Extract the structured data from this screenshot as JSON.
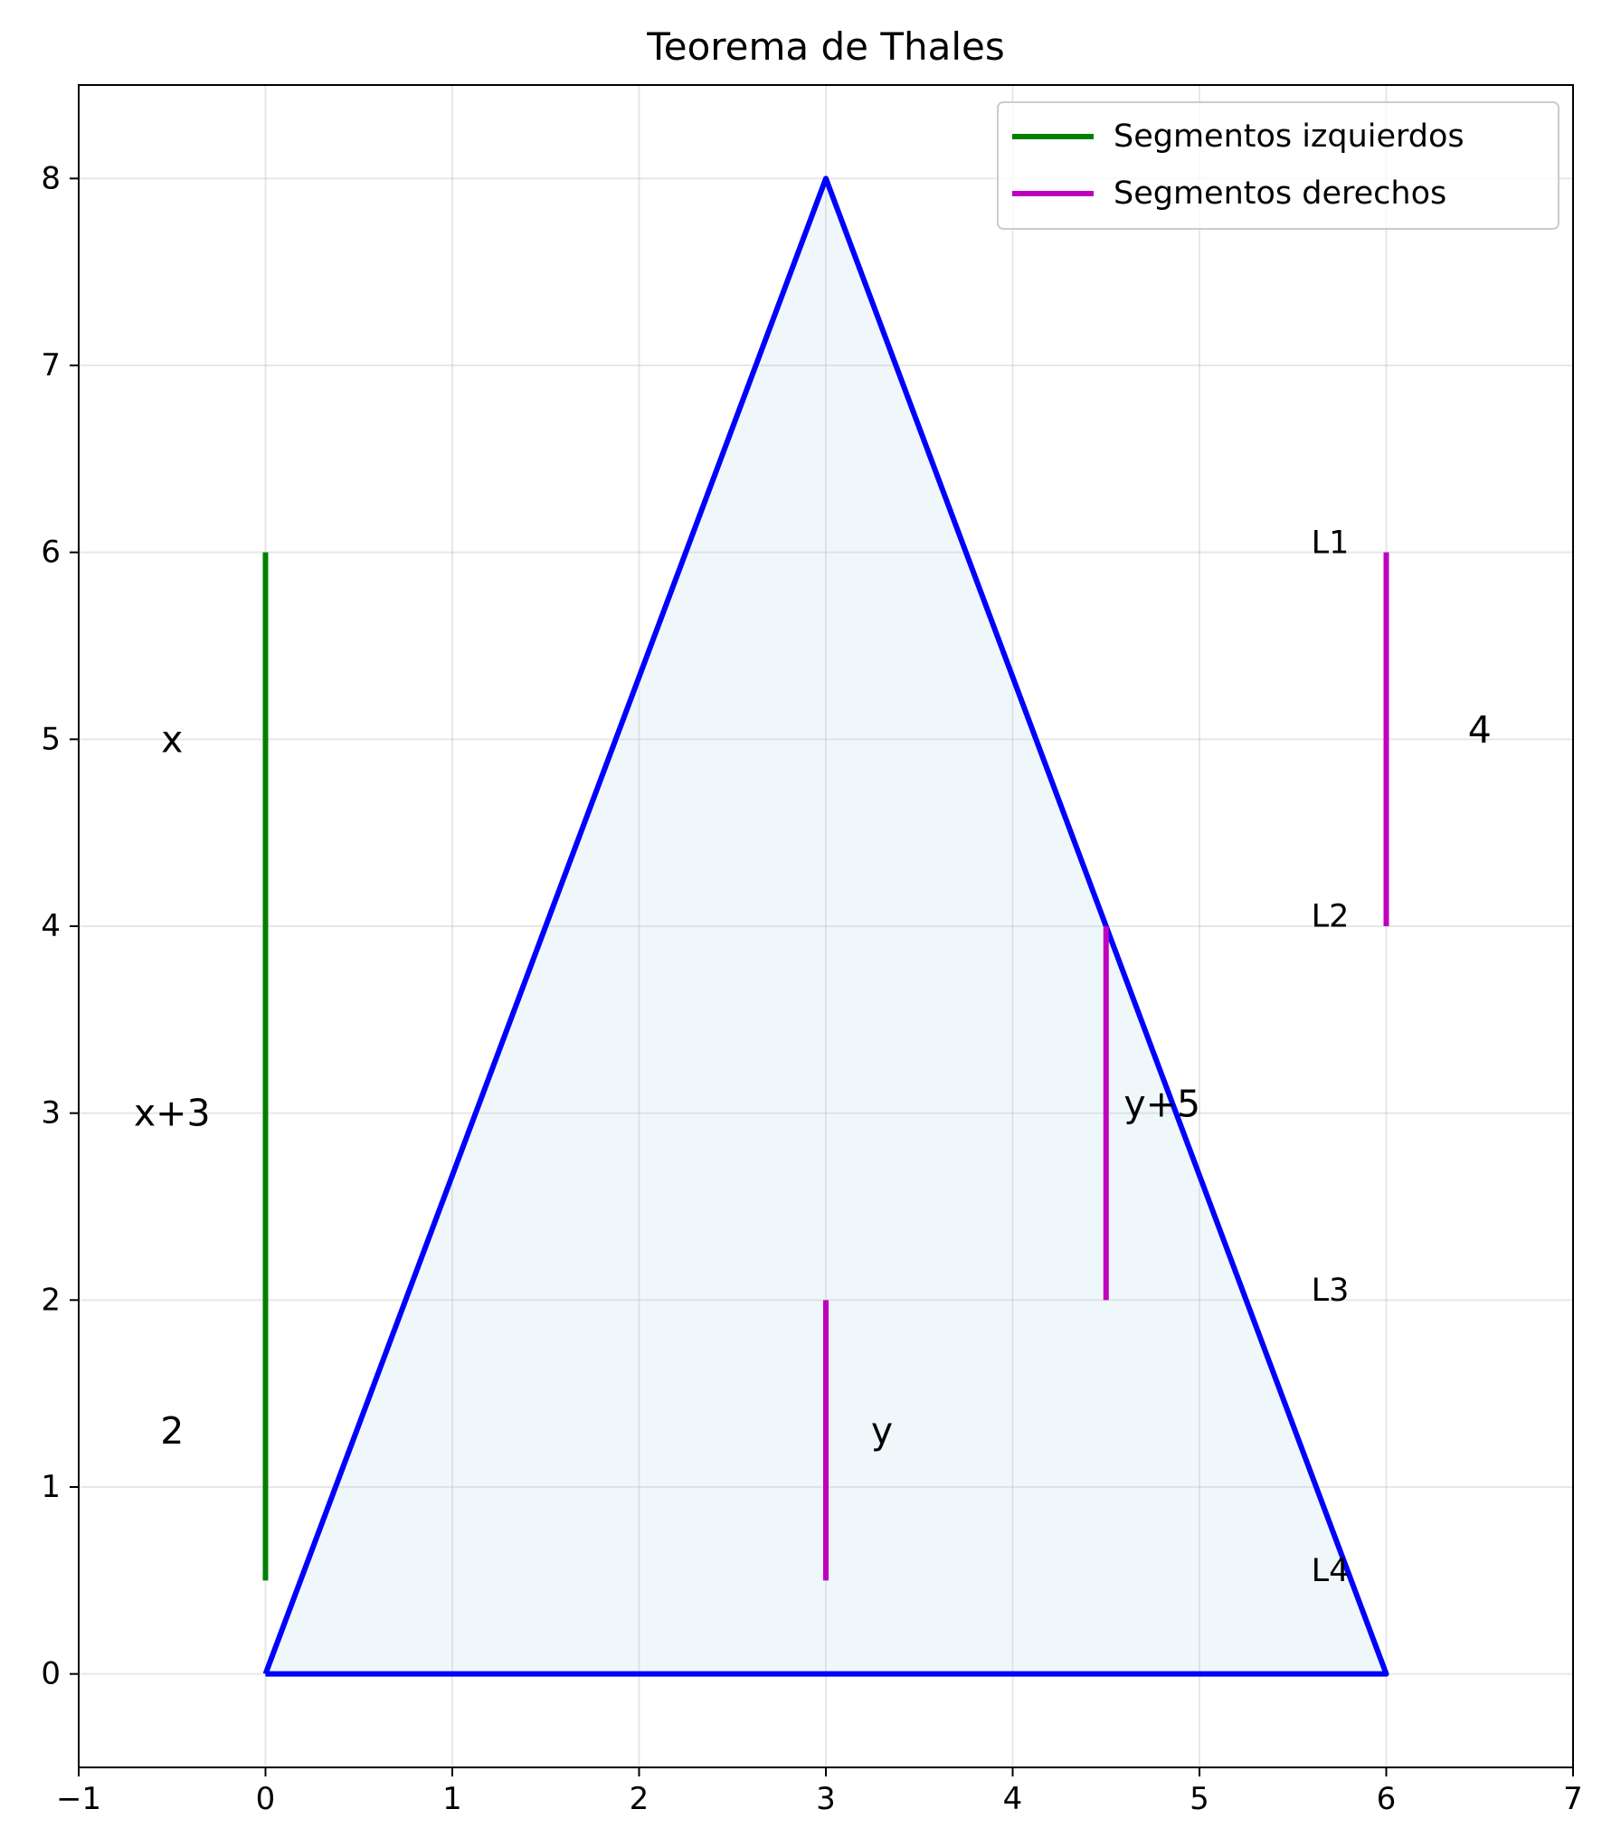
{
  "chart_data": {
    "type": "line",
    "title": "Teorema de Thales",
    "xlabel": "",
    "ylabel": "",
    "xlim": [
      -1,
      7
    ],
    "ylim": [
      -0.5,
      8.5
    ],
    "xticks": [
      -1,
      0,
      1,
      2,
      3,
      4,
      5,
      6,
      7
    ],
    "xtick_labels": [
      "−1",
      "0",
      "1",
      "2",
      "3",
      "4",
      "5",
      "6",
      "7"
    ],
    "yticks": [
      0,
      1,
      2,
      3,
      4,
      5,
      6,
      7,
      8
    ],
    "ytick_labels": [
      "0",
      "1",
      "2",
      "3",
      "4",
      "5",
      "6",
      "7",
      "8"
    ],
    "grid": true,
    "legend_position": "top-right",
    "triangle": {
      "points": [
        [
          0,
          0
        ],
        [
          3,
          8
        ],
        [
          6,
          0
        ],
        [
          0,
          0
        ]
      ],
      "color": "#0000ff",
      "fill": "#add8e6"
    },
    "series": [
      {
        "name": "Segmentos izquierdos",
        "color": "#008000",
        "segments": [
          {
            "x": [
              0,
              0
            ],
            "y": [
              0.5,
              6
            ]
          }
        ]
      },
      {
        "name": "Segmentos derechos",
        "color": "#bf00bf",
        "segments": [
          {
            "x": [
              3,
              3
            ],
            "y": [
              0.5,
              2
            ]
          },
          {
            "x": [
              4.5,
              4.5
            ],
            "y": [
              2,
              4
            ]
          },
          {
            "x": [
              6,
              6
            ],
            "y": [
              4,
              6
            ]
          }
        ]
      }
    ],
    "annotations": [
      {
        "text": "x",
        "x": -0.5,
        "y": 5,
        "size": "big"
      },
      {
        "text": "x+3",
        "x": -0.5,
        "y": 3,
        "size": "big"
      },
      {
        "text": "2",
        "x": -0.5,
        "y": 1.3,
        "size": "big"
      },
      {
        "text": "y",
        "x": 3.3,
        "y": 1.3,
        "size": "big"
      },
      {
        "text": "y+5",
        "x": 4.8,
        "y": 3.05,
        "size": "big"
      },
      {
        "text": "4",
        "x": 6.5,
        "y": 5.05,
        "size": "big"
      },
      {
        "text": "L1",
        "x": 5.7,
        "y": 6.05,
        "size": "small"
      },
      {
        "text": "L2",
        "x": 5.7,
        "y": 4.05,
        "size": "small"
      },
      {
        "text": "L3",
        "x": 5.7,
        "y": 2.05,
        "size": "small"
      },
      {
        "text": "L4",
        "x": 5.7,
        "y": 0.55,
        "size": "small"
      }
    ]
  }
}
